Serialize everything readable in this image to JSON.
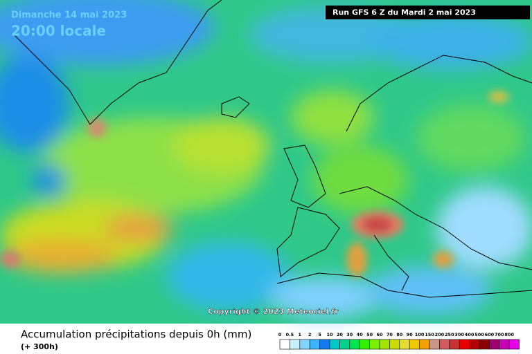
{
  "header": {
    "date": "Dimanche 14 mai 2023",
    "time": "20:00 locale",
    "run": "Run GFS 6 Z du Mardi 2 mai 2023"
  },
  "copyright": "Copyright © 2023 Meteociel.fr",
  "legend": {
    "title": "Accumulation précipitations depuis 0h (mm)",
    "subtitle": "(+ 300h)",
    "items": [
      {
        "value": 0,
        "color": "#ffffff"
      },
      {
        "value": 0.5,
        "color": "#c8f0ff"
      },
      {
        "value": 1,
        "color": "#7fd4ff"
      },
      {
        "value": 2,
        "color": "#3cb4ff"
      },
      {
        "value": 5,
        "color": "#1478f0"
      },
      {
        "value": 10,
        "color": "#00c8c8"
      },
      {
        "value": 20,
        "color": "#00d28c"
      },
      {
        "value": 30,
        "color": "#00e650"
      },
      {
        "value": 40,
        "color": "#32f000"
      },
      {
        "value": 50,
        "color": "#78f000"
      },
      {
        "value": 60,
        "color": "#a0e600"
      },
      {
        "value": 70,
        "color": "#c8dc00"
      },
      {
        "value": 80,
        "color": "#e6dc32"
      },
      {
        "value": 90,
        "color": "#f0c800"
      },
      {
        "value": 100,
        "color": "#f0a000"
      },
      {
        "value": 150,
        "color": "#c89682"
      },
      {
        "value": 200,
        "color": "#d25a5a"
      },
      {
        "value": 250,
        "color": "#c83232"
      },
      {
        "value": 300,
        "color": "#e60000"
      },
      {
        "value": 400,
        "color": "#b40000"
      },
      {
        "value": 500,
        "color": "#8c0000"
      },
      {
        "value": 600,
        "color": "#a0006e"
      },
      {
        "value": 700,
        "color": "#c800b4"
      },
      {
        "value": 800,
        "color": "#e600e6"
      }
    ]
  }
}
